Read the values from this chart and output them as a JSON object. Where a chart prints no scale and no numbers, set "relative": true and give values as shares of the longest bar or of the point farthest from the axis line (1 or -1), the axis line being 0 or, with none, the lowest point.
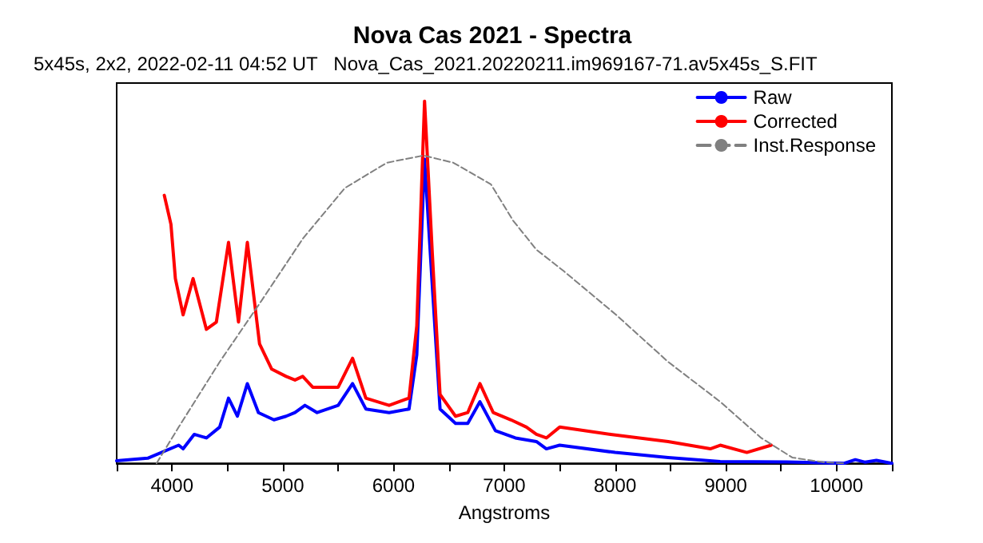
{
  "chart_data": {
    "type": "line",
    "title": "Nova Cas 2021 - Spectra",
    "subtitle": "5x45s, 2x2, 2022-02-11 04:52 UT   Nova_Cas_2021.20220211.im969167-71.av5x45s_S.FIT",
    "xlabel": "Angstroms",
    "relative": true,
    "xlim": [
      3500,
      10500
    ],
    "xticks": [
      {
        "value": 3500,
        "label": null
      },
      4000,
      {
        "value": 4500,
        "label": null
      },
      5000,
      {
        "value": 5500,
        "label": null
      },
      6000,
      {
        "value": 6500,
        "label": null
      },
      7000,
      {
        "value": 7500,
        "label": null
      },
      8000,
      {
        "value": 8500,
        "label": null
      },
      9000,
      {
        "value": 9500,
        "label": null
      },
      10000,
      {
        "value": 10500,
        "label": null
      }
    ],
    "legend": "top right",
    "grid": false,
    "marker": "none",
    "series": [
      {
        "name": "Raw",
        "color": "#0000ff",
        "line_style": "solid",
        "x": [
          3500,
          3780,
          4060,
          4100,
          4200,
          4310,
          4430,
          4510,
          4590,
          4680,
          4780,
          4920,
          5030,
          5110,
          5200,
          5310,
          5500,
          5630,
          5750,
          5960,
          6140,
          6210,
          6280,
          6350,
          6420,
          6560,
          6670,
          6780,
          6920,
          7100,
          7290,
          7380,
          7500,
          8000,
          8480,
          8950,
          9550,
          10070,
          10170,
          10260,
          10360,
          10500
        ],
        "values": [
          0.007,
          0.014,
          0.05,
          0.04,
          0.08,
          0.07,
          0.1,
          0.18,
          0.13,
          0.22,
          0.14,
          0.12,
          0.13,
          0.14,
          0.16,
          0.14,
          0.16,
          0.22,
          0.15,
          0.14,
          0.15,
          0.3,
          0.84,
          0.49,
          0.15,
          0.11,
          0.11,
          0.17,
          0.09,
          0.07,
          0.06,
          0.04,
          0.05,
          0.03,
          0.016,
          0.005,
          0.004,
          0,
          0.01,
          0.003,
          0.008,
          0
        ]
      },
      {
        "name": "Corrected",
        "color": "#ff0000",
        "line_style": "solid",
        "x": [
          3930,
          3990,
          4030,
          4100,
          4190,
          4310,
          4400,
          4510,
          4600,
          4680,
          4790,
          4900,
          5030,
          5110,
          5180,
          5270,
          5500,
          5630,
          5750,
          5960,
          6140,
          6210,
          6280,
          6350,
          6420,
          6560,
          6670,
          6780,
          6900,
          7060,
          7200,
          7290,
          7380,
          7500,
          7960,
          8480,
          8860,
          8950,
          9190,
          9410
        ],
        "values": [
          0.74,
          0.66,
          0.51,
          0.41,
          0.51,
          0.37,
          0.39,
          0.61,
          0.39,
          0.61,
          0.33,
          0.26,
          0.24,
          0.23,
          0.24,
          0.21,
          0.21,
          0.29,
          0.18,
          0.16,
          0.18,
          0.38,
          1,
          0.58,
          0.19,
          0.13,
          0.14,
          0.22,
          0.14,
          0.12,
          0.1,
          0.08,
          0.07,
          0.1,
          0.08,
          0.06,
          0.04,
          0.05,
          0.03,
          0.05
        ]
      },
      {
        "name": "Inst.Response",
        "color": "#808080",
        "line_style": "dashed",
        "x": [
          3860,
          4060,
          4430,
          4810,
          5180,
          5560,
          5940,
          6270,
          6540,
          6880,
          7080,
          7290,
          7540,
          8010,
          8480,
          8950,
          9320,
          9600,
          9880,
          10070
        ],
        "values": [
          0,
          0.1,
          0.28,
          0.45,
          0.62,
          0.76,
          0.83,
          0.85,
          0.83,
          0.77,
          0.67,
          0.59,
          0.53,
          0.41,
          0.28,
          0.17,
          0.07,
          0.016,
          0.003,
          0
        ]
      }
    ]
  }
}
